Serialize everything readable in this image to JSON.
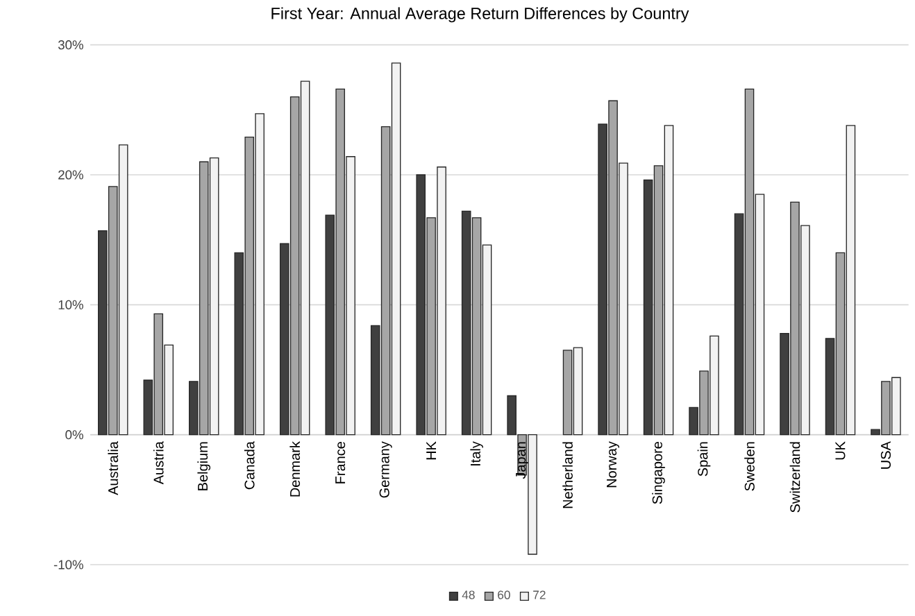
{
  "chart_data": {
    "type": "bar",
    "title": "First Year: Annual Average Return Differences by Country",
    "categories": [
      "Australia",
      "Austria",
      "Belgium",
      "Canada",
      "Denmark",
      "France",
      "Germany",
      "HK",
      "Italy",
      "Japan",
      "Netherland",
      "Norway",
      "Singapore",
      "Spain",
      "Sweden",
      "Switzerland",
      "UK",
      "USA"
    ],
    "series": [
      {
        "name": "48",
        "color": "#404040",
        "values": [
          15.7,
          4.2,
          4.1,
          14.0,
          14.7,
          16.9,
          8.4,
          20.0,
          17.2,
          3.0,
          null,
          23.9,
          19.6,
          2.1,
          17.0,
          7.8,
          7.4,
          0.4
        ]
      },
      {
        "name": "60",
        "color": "#a6a6a6",
        "values": [
          19.1,
          9.3,
          21.0,
          22.9,
          26.0,
          26.6,
          23.7,
          16.7,
          16.7,
          -3.1,
          6.5,
          25.7,
          20.7,
          4.9,
          26.6,
          17.9,
          14.0,
          4.1
        ]
      },
      {
        "name": "72",
        "color": "#f2f2f2",
        "values": [
          22.3,
          6.9,
          21.3,
          24.7,
          27.2,
          21.4,
          28.6,
          20.6,
          14.6,
          -9.2,
          6.7,
          20.9,
          23.8,
          7.6,
          18.5,
          16.1,
          23.8,
          4.4
        ]
      }
    ],
    "ylim": [
      -10,
      30
    ],
    "yticks": [
      {
        "value": -10,
        "label": "-10%"
      },
      {
        "value": 0,
        "label": "0%"
      },
      {
        "value": 10,
        "label": "10%"
      },
      {
        "value": 20,
        "label": "20%"
      },
      {
        "value": 30,
        "label": "30%"
      }
    ],
    "grid": "y",
    "legend": "bottom"
  }
}
